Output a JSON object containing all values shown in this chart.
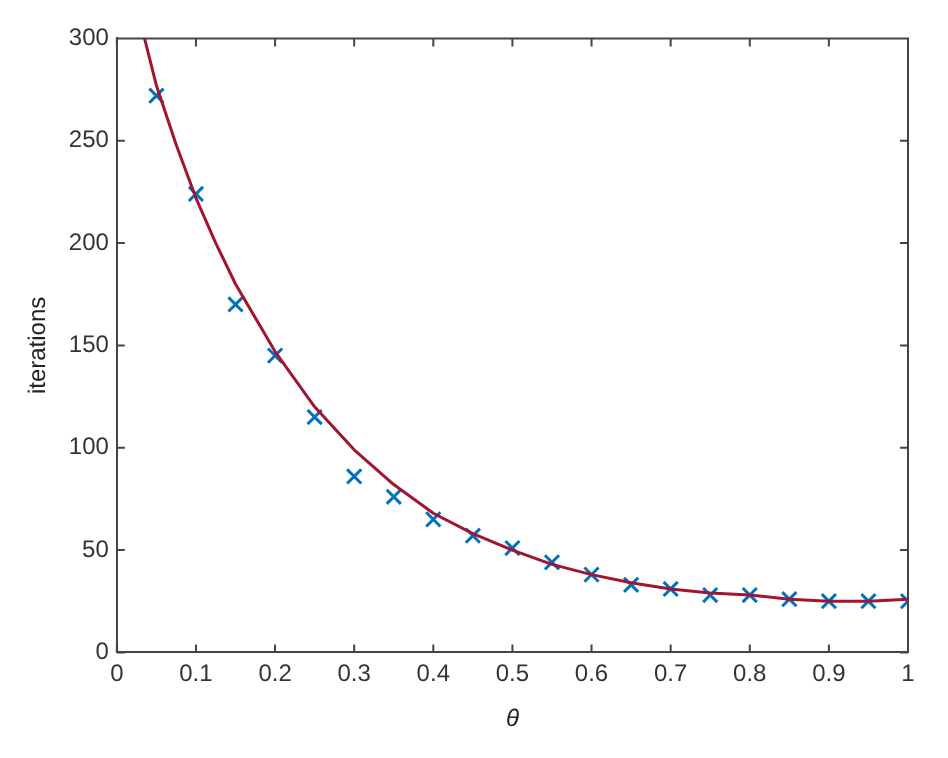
{
  "chart_data": {
    "type": "scatter",
    "xlabel": "θ",
    "ylabel": "iterations",
    "xlim": [
      0,
      1
    ],
    "ylim": [
      0,
      300
    ],
    "xticks": [
      0,
      0.1,
      0.2,
      0.3,
      0.4,
      0.5,
      0.6,
      0.7,
      0.8,
      0.9,
      1
    ],
    "yticks": [
      0,
      50,
      100,
      150,
      200,
      250,
      300
    ],
    "grid": false,
    "legend": false,
    "series": [
      {
        "type": "line",
        "color": "#a2142f",
        "marker": "none",
        "line_style": "solid",
        "x": [
          0.035,
          0.05,
          0.075,
          0.1,
          0.125,
          0.15,
          0.2,
          0.25,
          0.3,
          0.35,
          0.4,
          0.45,
          0.5,
          0.55,
          0.6,
          0.65,
          0.7,
          0.75,
          0.8,
          0.85,
          0.9,
          0.95,
          1
        ],
        "values": [
          300,
          277,
          248,
          222,
          200,
          180,
          147,
          120,
          99,
          82,
          68,
          58,
          50,
          43,
          38,
          34,
          31,
          29,
          28,
          26,
          25,
          25,
          26
        ]
      },
      {
        "color": "#0072bd",
        "marker": "cross",
        "x": [
          0.05,
          0.1,
          0.15,
          0.2,
          0.25,
          0.3,
          0.35,
          0.4,
          0.45,
          0.5,
          0.55,
          0.6,
          0.65,
          0.7,
          0.75,
          0.8,
          0.85,
          0.9,
          0.95,
          1
        ],
        "values": [
          272,
          224,
          170,
          145,
          115,
          86,
          76,
          65,
          57,
          51,
          44,
          38,
          33,
          31,
          28,
          28,
          26,
          25,
          25,
          25
        ]
      }
    ]
  }
}
